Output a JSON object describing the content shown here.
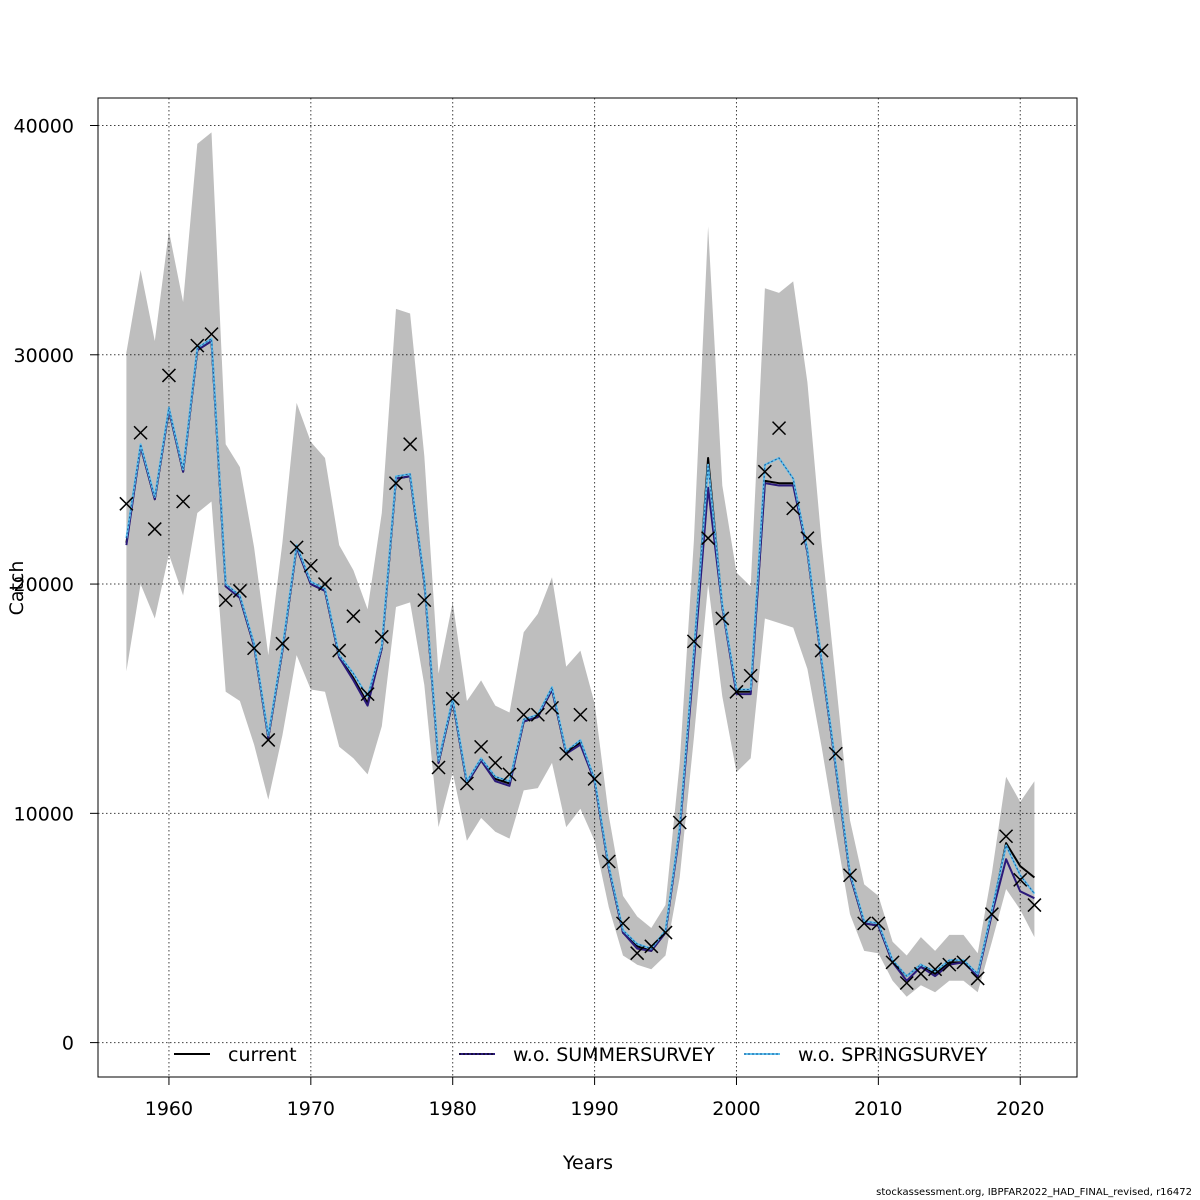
{
  "chart_data": {
    "type": "line",
    "title": "",
    "xlabel": "Years",
    "ylabel": "Catch",
    "xlim": [
      1955,
      2024
    ],
    "ylim": [
      -1500,
      41200
    ],
    "x_ticks": [
      1960,
      1970,
      1980,
      1990,
      2000,
      2010,
      2020
    ],
    "y_ticks": [
      0,
      10000,
      20000,
      30000,
      40000
    ],
    "grid": true,
    "legend_position": "bottom",
    "x": [
      1957,
      1958,
      1959,
      1960,
      1961,
      1962,
      1963,
      1964,
      1965,
      1966,
      1967,
      1968,
      1969,
      1970,
      1971,
      1972,
      1973,
      1974,
      1975,
      1976,
      1977,
      1978,
      1979,
      1980,
      1981,
      1982,
      1983,
      1984,
      1985,
      1986,
      1987,
      1988,
      1989,
      1990,
      1991,
      1992,
      1993,
      1994,
      1995,
      1996,
      1997,
      1998,
      1999,
      2000,
      2001,
      2002,
      2003,
      2004,
      2005,
      2006,
      2007,
      2008,
      2009,
      2010,
      2011,
      2012,
      2013,
      2014,
      2015,
      2016,
      2017,
      2018,
      2019,
      2020,
      2021
    ],
    "series": [
      {
        "name": "current",
        "color": "#000000",
        "style": "solid",
        "values": [
          21800,
          26000,
          23700,
          27600,
          24900,
          30200,
          30600,
          19900,
          19400,
          17300,
          13300,
          17100,
          21600,
          20000,
          19700,
          16800,
          15900,
          14800,
          17200,
          24600,
          24700,
          20100,
          12200,
          14900,
          11300,
          12300,
          11500,
          11300,
          14000,
          14200,
          15400,
          12600,
          13100,
          11400,
          7600,
          4800,
          4200,
          4000,
          4800,
          9300,
          16900,
          25500,
          19000,
          15300,
          15300,
          24500,
          24400,
          24400,
          21400,
          16600,
          12000,
          7300,
          5200,
          5100,
          3500,
          2900,
          3400,
          3000,
          3500,
          3500,
          3000,
          5700,
          8700,
          7700,
          7200
        ]
      },
      {
        "name": "w.o. SUMMERSURVEY",
        "color": "#2b1a7a",
        "style": "solid",
        "values": [
          21700,
          26000,
          23700,
          27600,
          24900,
          30200,
          30600,
          19900,
          19400,
          17300,
          13300,
          17100,
          21600,
          20000,
          19700,
          16800,
          15800,
          14700,
          17200,
          24600,
          24700,
          20100,
          12200,
          14900,
          11300,
          12300,
          11400,
          11200,
          14000,
          14200,
          15400,
          12600,
          13000,
          11400,
          7600,
          4800,
          4100,
          4000,
          4800,
          9200,
          16600,
          24200,
          19000,
          15200,
          15200,
          24400,
          24300,
          24300,
          21400,
          16600,
          12000,
          7300,
          5200,
          5100,
          3500,
          2700,
          3300,
          2900,
          3400,
          3500,
          2900,
          5600,
          8000,
          6600,
          6300
        ]
      },
      {
        "name": "w.o. SPRINGSURVEY",
        "color": "#5fc1ef",
        "style": "dotted",
        "values": [
          22000,
          26100,
          23800,
          27700,
          25000,
          30300,
          30700,
          20000,
          19500,
          17400,
          13400,
          17200,
          21700,
          20100,
          19800,
          16900,
          16100,
          15100,
          17300,
          24700,
          24800,
          20200,
          12300,
          15000,
          11400,
          12400,
          11600,
          11400,
          14100,
          14300,
          15500,
          12700,
          13200,
          11500,
          7700,
          4900,
          4300,
          4100,
          4900,
          9400,
          17100,
          25200,
          19100,
          15400,
          15400,
          25200,
          25500,
          24600,
          21500,
          16700,
          12100,
          7400,
          5300,
          5200,
          3600,
          2900,
          3400,
          3100,
          3600,
          3600,
          3000,
          5800,
          8600,
          7300,
          6500
        ]
      },
      {
        "name": "",
        "kind": "observed",
        "marker": "x",
        "color": "#000000",
        "values": [
          23500,
          26600,
          22400,
          29100,
          23600,
          30400,
          30900,
          19300,
          19700,
          17200,
          13200,
          17400,
          21600,
          20800,
          20000,
          17100,
          18600,
          15200,
          17700,
          24400,
          26100,
          19300,
          12000,
          15000,
          11300,
          12900,
          12200,
          11700,
          14300,
          14300,
          14600,
          12600,
          14300,
          11500,
          7900,
          5200,
          3900,
          4200,
          4800,
          9600,
          17500,
          22000,
          18500,
          15300,
          16000,
          24900,
          26800,
          23300,
          22000,
          17100,
          12600,
          7300,
          5200,
          5200,
          3500,
          2600,
          3000,
          3200,
          3400,
          3500,
          2800,
          5600,
          9000,
          7100,
          6000
        ]
      }
    ],
    "confidence_band": {
      "color": "#bebebe",
      "lower": [
        16200,
        20000,
        18500,
        21300,
        19500,
        23100,
        23600,
        15300,
        14900,
        13000,
        10600,
        13400,
        16900,
        15400,
        15300,
        12900,
        12400,
        11700,
        13800,
        19000,
        19200,
        15600,
        9400,
        11800,
        8800,
        9800,
        9200,
        8900,
        11000,
        11100,
        12200,
        9400,
        10200,
        8800,
        5900,
        3800,
        3400,
        3200,
        3800,
        7200,
        13300,
        20000,
        15100,
        11800,
        12400,
        18500,
        18300,
        18100,
        16300,
        12900,
        9200,
        5600,
        4000,
        3900,
        2700,
        2000,
        2500,
        2200,
        2700,
        2700,
        2200,
        4400,
        6700,
        5800,
        4600
      ],
      "upper": [
        30100,
        33700,
        30600,
        35400,
        32300,
        39200,
        39700,
        26100,
        25100,
        21600,
        16900,
        21800,
        27900,
        26200,
        25500,
        21700,
        20600,
        18900,
        23100,
        32000,
        31800,
        25600,
        16100,
        19200,
        14900,
        15800,
        14700,
        14400,
        17900,
        18700,
        20300,
        16400,
        17100,
        14800,
        9900,
        6400,
        5500,
        5000,
        6000,
        12200,
        21900,
        35600,
        24300,
        20500,
        19900,
        32900,
        32700,
        33200,
        28800,
        21800,
        15800,
        9700,
        6900,
        6400,
        4400,
        3800,
        4600,
        4000,
        4700,
        4700,
        3900,
        7400,
        11600,
        10500,
        11400
      ]
    },
    "legend": [
      {
        "label": "current",
        "color": "#000000"
      },
      {
        "label": "w.o. SUMMERSURVEY",
        "color": "#2b1a7a"
      },
      {
        "label": "w.o. SPRINGSURVEY",
        "color": "#5fc1ef"
      }
    ]
  },
  "footer": "stockassessment.org, IBPFAR2022_HAD_FINAL_revised, r16472"
}
